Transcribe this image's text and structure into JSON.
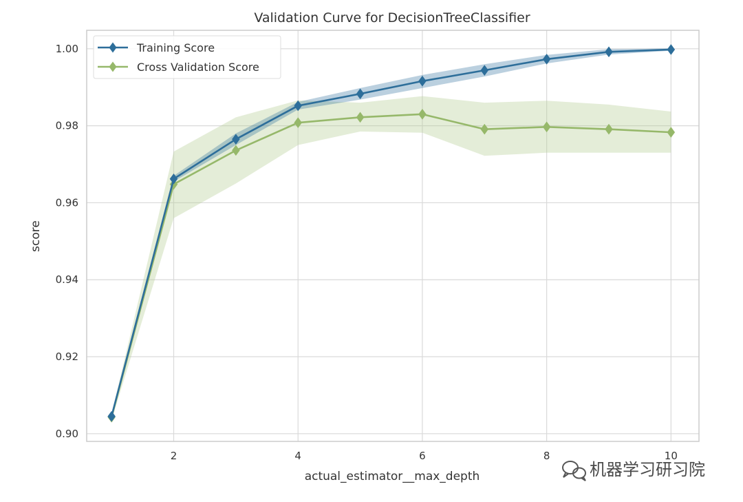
{
  "chart_data": {
    "type": "line",
    "title": "Validation Curve for DecisionTreeClassifier",
    "xlabel": "actual_estimator__max_depth",
    "ylabel": "score",
    "x": [
      1,
      2,
      3,
      4,
      5,
      6,
      7,
      8,
      9,
      10
    ],
    "xticks": [
      2,
      4,
      6,
      8,
      10
    ],
    "yticks": [
      0.9,
      0.92,
      0.94,
      0.96,
      0.98,
      1.0
    ],
    "ytick_labels": [
      "0.90",
      "0.92",
      "0.94",
      "0.96",
      "0.98",
      "1.00"
    ],
    "xlim": [
      0.6,
      10.45
    ],
    "ylim": [
      0.898,
      1.0048
    ],
    "grid": true,
    "legend_position": "top-left",
    "series": [
      {
        "name": "Training Score",
        "color": "#2d6e9a",
        "band_color": "#2d6e9a",
        "marker": "diamond",
        "values": [
          0.9045,
          0.9662,
          0.9765,
          0.9852,
          0.9883,
          0.9916,
          0.9944,
          0.9973,
          0.9992,
          0.9998
        ],
        "band_lower": [
          0.904,
          0.9655,
          0.975,
          0.9842,
          0.9868,
          0.9898,
          0.9928,
          0.9962,
          0.9985,
          0.9995
        ],
        "band_upper": [
          0.905,
          0.967,
          0.978,
          0.9862,
          0.9898,
          0.9932,
          0.996,
          0.9984,
          0.9999,
          1.0001
        ]
      },
      {
        "name": "Cross Validation Score",
        "color": "#96b86a",
        "band_color": "#b7cf98",
        "marker": "diamond",
        "values": [
          0.9043,
          0.9648,
          0.9736,
          0.9808,
          0.9822,
          0.983,
          0.9791,
          0.9797,
          0.9791,
          0.9783
        ],
        "band_lower": [
          0.9035,
          0.956,
          0.965,
          0.975,
          0.9785,
          0.9782,
          0.9722,
          0.973,
          0.973,
          0.973
        ],
        "band_upper": [
          0.9051,
          0.9733,
          0.9822,
          0.9866,
          0.986,
          0.9877,
          0.986,
          0.9865,
          0.9855,
          0.9837
        ]
      }
    ]
  },
  "watermark": {
    "text": "机器学习研习院",
    "icon": "wechat-icon"
  }
}
